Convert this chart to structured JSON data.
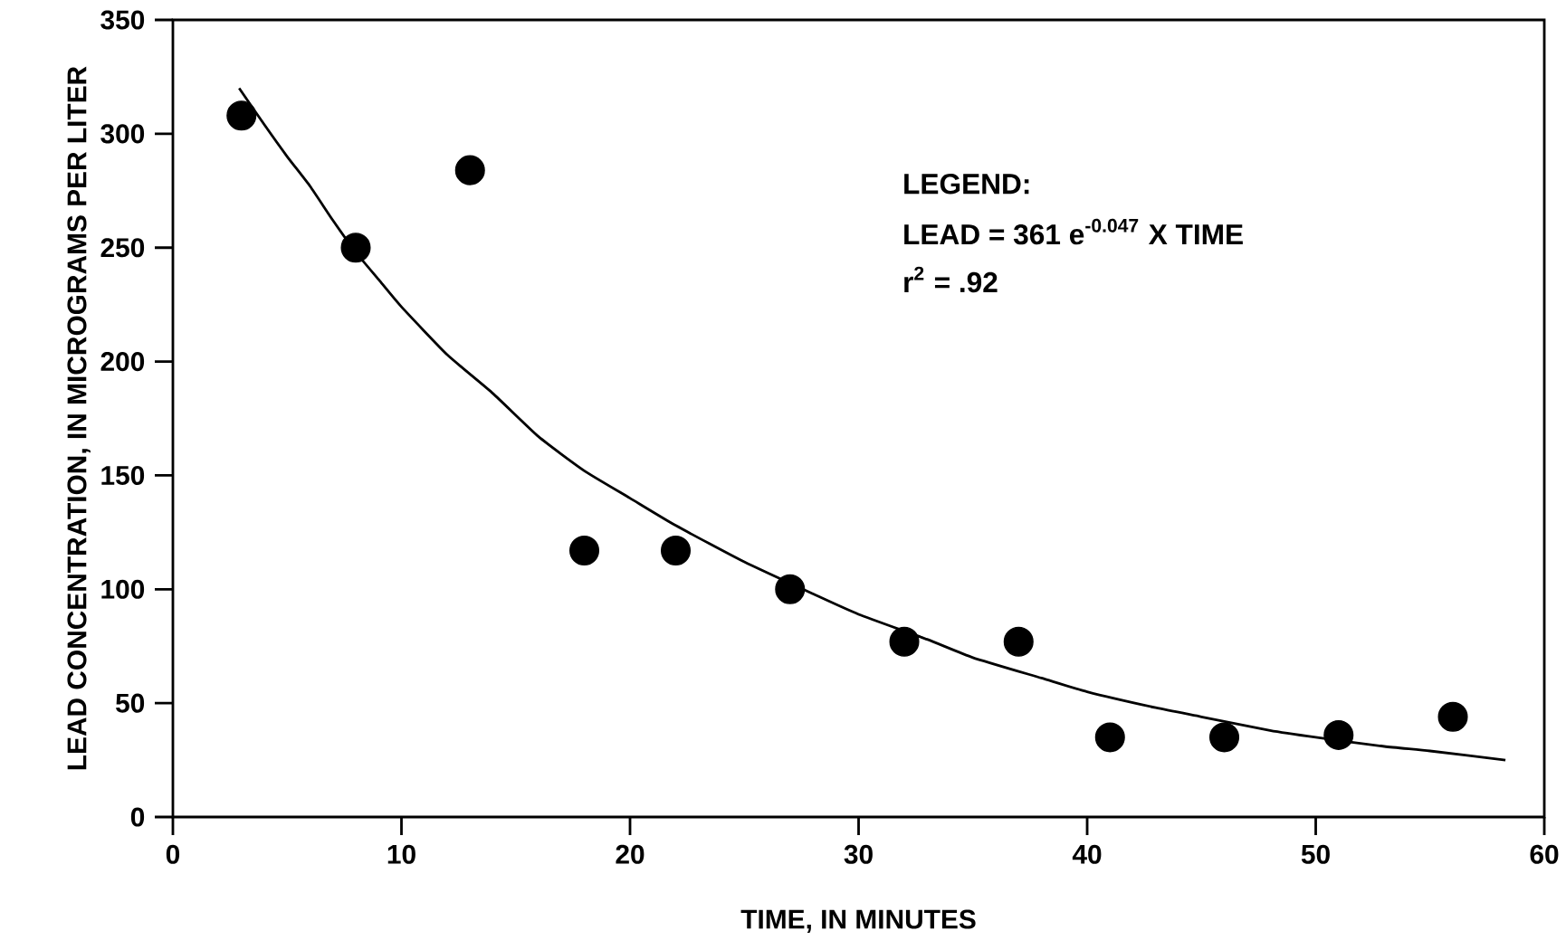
{
  "chart_data": {
    "type": "scatter",
    "xlabel": "TIME, IN MINUTES",
    "ylabel": "LEAD CONCENTRATION, IN MICROGRAMS PER LITER",
    "xlim": [
      0,
      60
    ],
    "ylim": [
      0,
      350
    ],
    "xticks": [
      0,
      10,
      20,
      30,
      40,
      50,
      60
    ],
    "yticks": [
      0,
      50,
      100,
      150,
      200,
      250,
      300,
      350
    ],
    "grid": false,
    "series": [
      {
        "marker": "circle",
        "color": "#000000",
        "x": [
          3,
          8,
          13,
          18,
          22,
          27,
          32,
          37,
          41,
          46,
          51,
          56
        ],
        "values": [
          308,
          250,
          284,
          117,
          117,
          100,
          77,
          77,
          35,
          35,
          36,
          44
        ]
      },
      {
        "type": "line",
        "marker": "none",
        "line_style": "solid",
        "color": "#000000",
        "x": [
          2.9,
          4,
          5,
          6,
          7,
          8,
          9,
          10,
          12,
          14,
          16,
          18,
          20,
          22,
          25,
          28,
          30,
          33,
          35,
          38,
          40,
          43,
          45,
          48,
          50,
          53,
          55,
          58.3
        ],
        "values": [
          320,
          304,
          290,
          277,
          262,
          248,
          236,
          224,
          203,
          186,
          167,
          152,
          140,
          128,
          112,
          98,
          89,
          78,
          70,
          61,
          55,
          48,
          44,
          38,
          35,
          31,
          29,
          25
        ]
      }
    ],
    "annotations": [
      "LEGEND:",
      "LEAD = 361 e$^{-0.047}$ X TIME",
      "r$^{2}$ = .92"
    ]
  }
}
